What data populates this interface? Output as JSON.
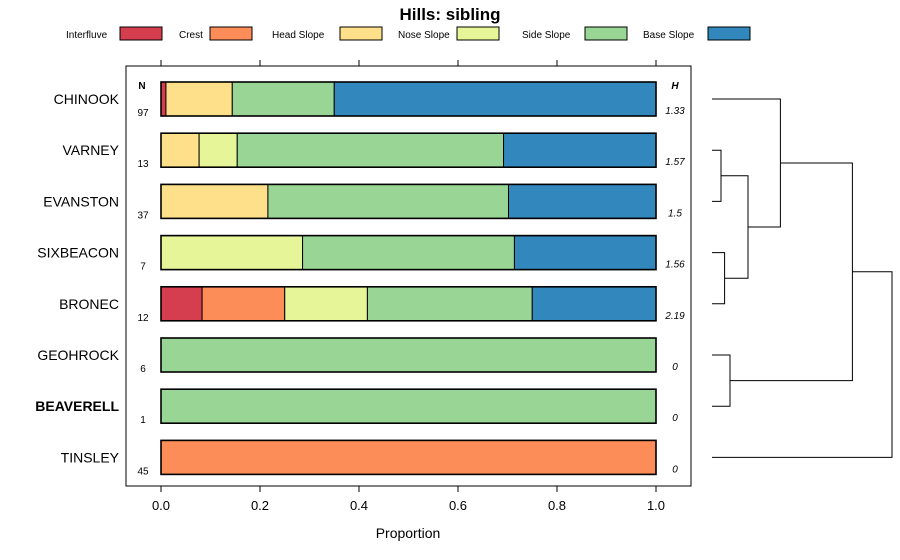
{
  "chart_data": {
    "type": "bar",
    "subtype": "stacked-horizontal-proportion",
    "title": "Hills: sibling",
    "xlabel": "Proportion",
    "ylabel": "",
    "xlim": [
      0,
      1
    ],
    "x_ticks": [
      "0.0",
      "0.2",
      "0.4",
      "0.6",
      "0.8",
      "1.0"
    ],
    "x_tick_values": [
      0,
      0.2,
      0.4,
      0.6,
      0.8,
      1.0
    ],
    "n_header": "N",
    "h_header": "H",
    "legend": [
      {
        "name": "Interfluve",
        "color": "#d53e4f"
      },
      {
        "name": "Crest",
        "color": "#fc8d59"
      },
      {
        "name": "Head Slope",
        "color": "#fee08b"
      },
      {
        "name": "Nose Slope",
        "color": "#e6f598"
      },
      {
        "name": "Side Slope",
        "color": "#99d594"
      },
      {
        "name": "Base Slope",
        "color": "#3288bd"
      }
    ],
    "rows": [
      {
        "label": "CHINOOK",
        "n": "97",
        "h": "1.33",
        "bold": false,
        "values": [
          0.01,
          0,
          0.134,
          0,
          0.206,
          0.65
        ]
      },
      {
        "label": "VARNEY",
        "n": "13",
        "h": "1.57",
        "bold": false,
        "values": [
          0,
          0,
          0.077,
          0.077,
          0.538,
          0.308
        ]
      },
      {
        "label": "EVANSTON",
        "n": "37",
        "h": "1.5",
        "bold": false,
        "values": [
          0,
          0,
          0.216,
          0,
          0.486,
          0.298
        ]
      },
      {
        "label": "SIXBEACON",
        "n": "7",
        "h": "1.56",
        "bold": false,
        "values": [
          0,
          0,
          0,
          0.286,
          0.428,
          0.286
        ]
      },
      {
        "label": "BRONEC",
        "n": "12",
        "h": "2.19",
        "bold": false,
        "values": [
          0.083,
          0.167,
          0,
          0.167,
          0.333,
          0.25
        ]
      },
      {
        "label": "GEOHROCK",
        "n": "6",
        "h": "0",
        "bold": false,
        "values": [
          0,
          0,
          0,
          0,
          1,
          0
        ]
      },
      {
        "label": "BEAVERELL",
        "n": "1",
        "h": "0",
        "bold": true,
        "values": [
          0,
          0,
          0,
          0,
          1,
          0
        ]
      },
      {
        "label": "TINSLEY",
        "n": "45",
        "h": "0",
        "bold": false,
        "values": [
          0,
          1,
          0,
          0,
          0,
          0
        ]
      }
    ],
    "dendrogram": {
      "merges": [
        {
          "a": 1,
          "b": 2,
          "height": 0.05
        },
        {
          "a": 3,
          "b": 4,
          "height": 0.07
        },
        {
          "a": 5,
          "b": 6,
          "height": 0.1
        },
        {
          "a": "m0",
          "b": "m1",
          "height": 0.2
        },
        {
          "a": 0,
          "b": "m3",
          "height": 0.38
        },
        {
          "a": "m4",
          "b": "m2",
          "height": 0.78
        },
        {
          "a": "m5",
          "b": 7,
          "height": 1.0
        }
      ]
    }
  }
}
